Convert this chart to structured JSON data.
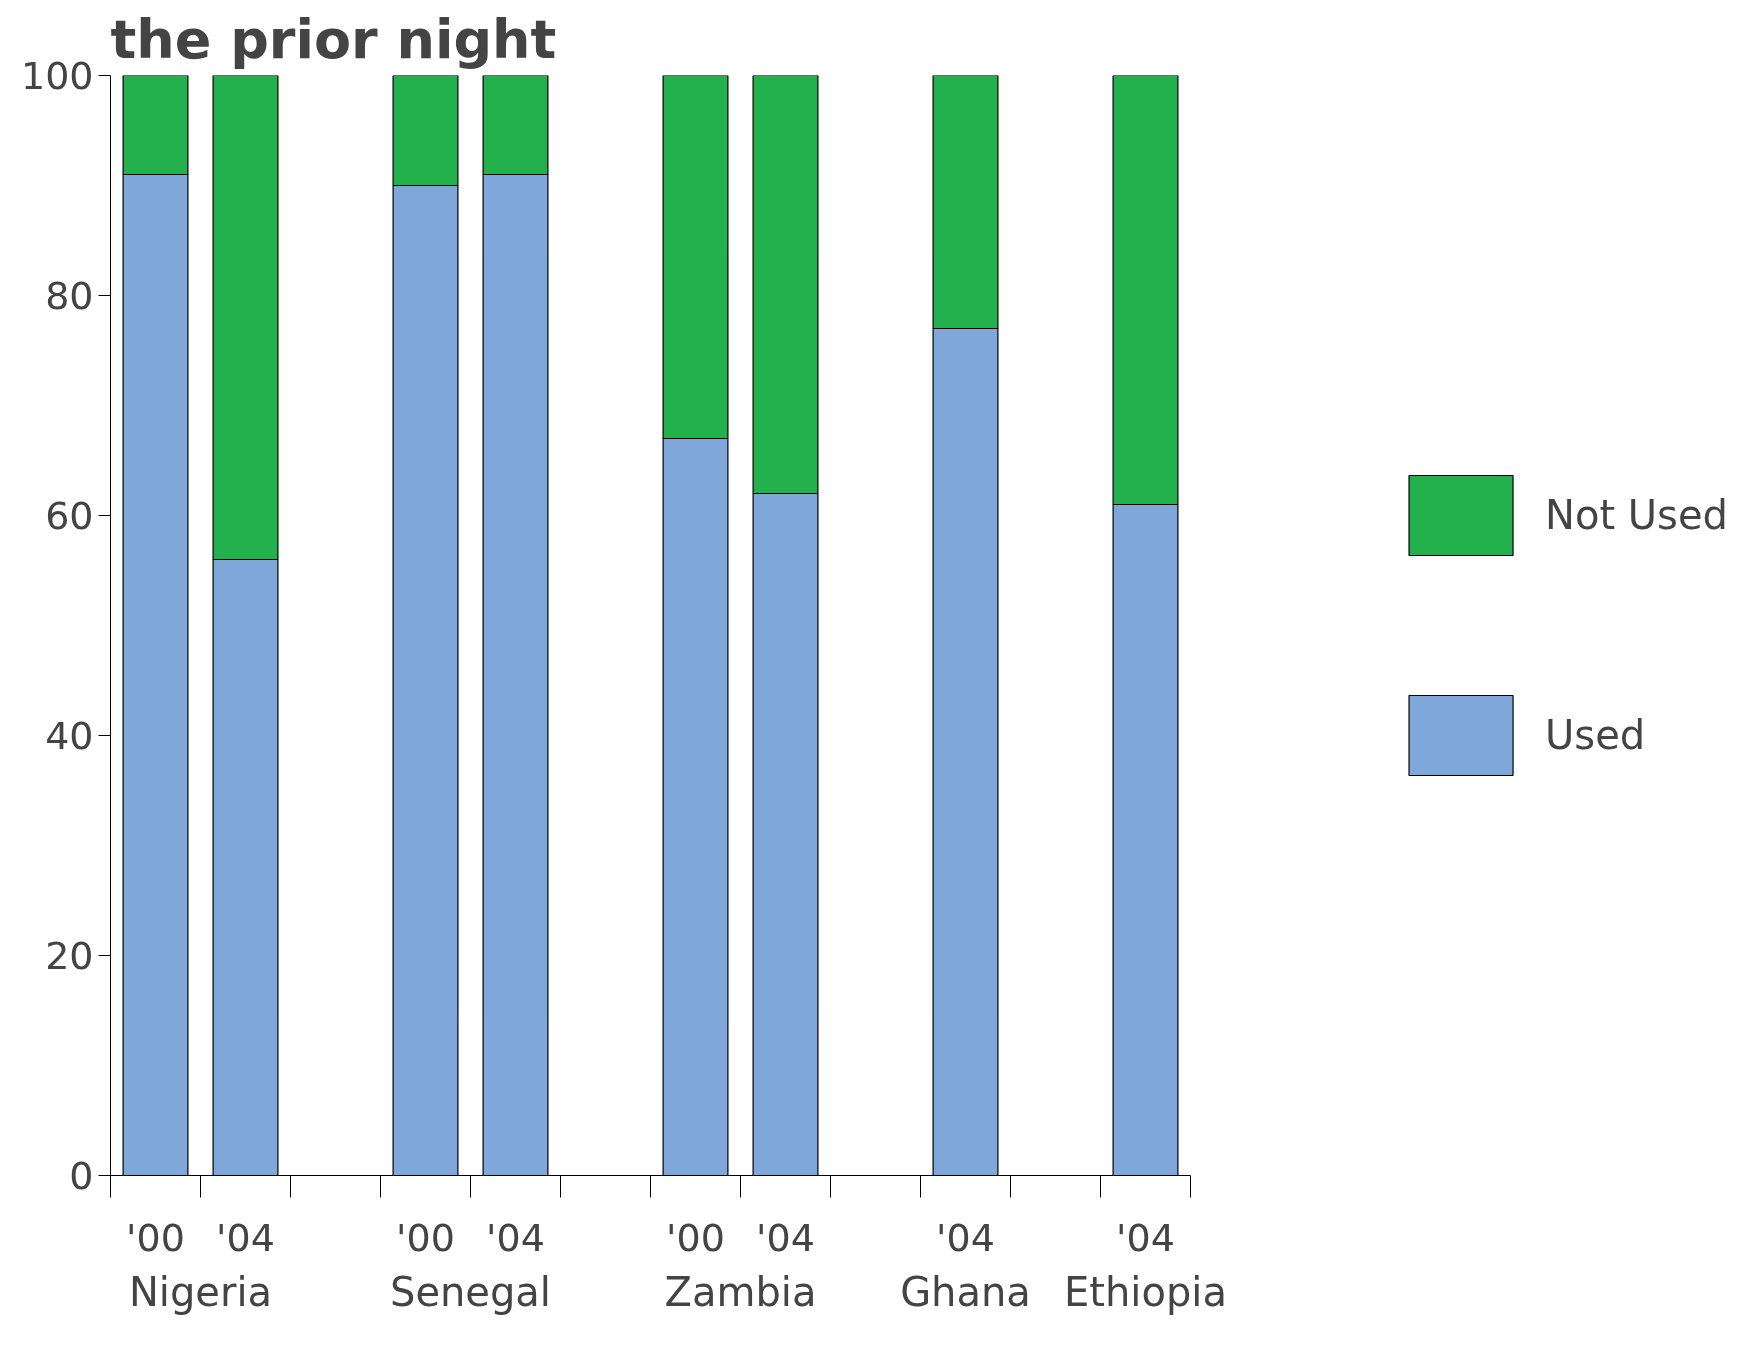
{
  "chart_data": {
    "type": "bar",
    "title": "the prior night",
    "stacked": true,
    "categories": [
      "'00",
      "'04",
      null,
      "'00",
      "'04",
      null,
      "'00",
      "'04",
      null,
      "'04",
      null,
      "'04"
    ],
    "annotations": [
      "Nigeria",
      "Senegal",
      "Zambia",
      "Ghana",
      "Ethiopia"
    ],
    "series": [
      {
        "name": "Used",
        "color": "#7fa7d9",
        "values": [
          91,
          56,
          null,
          90,
          91,
          null,
          67,
          62,
          null,
          77,
          null,
          61
        ]
      },
      {
        "name": "Not Used",
        "color": "#23b14d",
        "values": [
          9,
          44,
          null,
          10,
          9,
          null,
          33,
          38,
          null,
          23,
          null,
          39
        ]
      }
    ],
    "ylim": [
      0,
      100
    ],
    "yticks": [
      0,
      20,
      40,
      60,
      80,
      100
    ],
    "grid": false,
    "legend": "right"
  }
}
